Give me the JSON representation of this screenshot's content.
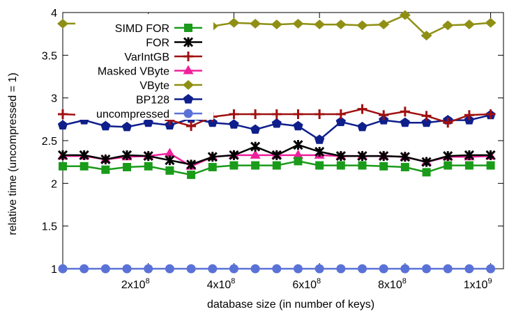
{
  "chart_data": {
    "type": "line",
    "xlabel": "database size (in number of keys)",
    "ylabel": "relative time (uncompressed = 1)",
    "xlim": [
      0,
      1030000000
    ],
    "ylim": [
      1,
      4
    ],
    "grid": false,
    "legend_position": "top-left",
    "x_ticks": [
      {
        "value": 200000000,
        "mantissa": "2x10",
        "exponent": "8"
      },
      {
        "value": 400000000,
        "mantissa": "4x10",
        "exponent": "8"
      },
      {
        "value": 600000000,
        "mantissa": "6x10",
        "exponent": "8"
      },
      {
        "value": 800000000,
        "mantissa": "8x10",
        "exponent": "8"
      },
      {
        "value": 1000000000,
        "mantissa": "1x10",
        "exponent": "9"
      }
    ],
    "y_ticks": [
      {
        "value": 1,
        "label": "1"
      },
      {
        "value": 1.5,
        "label": "1.5"
      },
      {
        "value": 2,
        "label": "2"
      },
      {
        "value": 2.5,
        "label": "2.5"
      },
      {
        "value": 3,
        "label": "3"
      },
      {
        "value": 3.5,
        "label": "3.5"
      },
      {
        "value": 4,
        "label": "4"
      }
    ],
    "x": [
      0,
      50000000,
      100000000,
      150000000,
      200000000,
      250000000,
      300000000,
      350000000,
      400000000,
      450000000,
      500000000,
      550000000,
      600000000,
      650000000,
      700000000,
      750000000,
      800000000,
      850000000,
      900000000,
      950000000,
      1000000000
    ],
    "series": [
      {
        "name": "SIMD FOR",
        "color": "#1a9b1a",
        "marker": "square",
        "values": [
          2.2,
          2.2,
          2.16,
          2.19,
          2.2,
          2.15,
          2.1,
          2.19,
          2.21,
          2.21,
          2.21,
          2.26,
          2.21,
          2.21,
          2.21,
          2.2,
          2.19,
          2.13,
          2.21,
          2.21,
          2.21
        ]
      },
      {
        "name": "FOR",
        "color": "#000000",
        "marker": "star",
        "values": [
          2.33,
          2.33,
          2.28,
          2.33,
          2.32,
          2.27,
          2.22,
          2.31,
          2.33,
          2.43,
          2.33,
          2.45,
          2.37,
          2.32,
          2.32,
          2.32,
          2.31,
          2.25,
          2.32,
          2.33,
          2.33
        ]
      },
      {
        "name": "VarIntGB",
        "color": "#a01010",
        "marker": "plus",
        "values": [
          2.81,
          2.8,
          2.8,
          2.8,
          2.8,
          2.74,
          2.67,
          2.78,
          2.81,
          2.81,
          2.81,
          2.81,
          2.81,
          2.81,
          2.87,
          2.8,
          2.84,
          2.79,
          2.71,
          2.8,
          2.81
        ]
      },
      {
        "name": "Masked VByte",
        "color": "#f0209c",
        "marker": "triangle",
        "values": [
          2.32,
          2.32,
          2.28,
          2.31,
          2.32,
          2.35,
          2.2,
          2.31,
          2.33,
          2.33,
          2.33,
          2.33,
          2.33,
          2.32,
          2.32,
          2.32,
          2.31,
          2.25,
          2.31,
          2.31,
          2.32
        ]
      },
      {
        "name": "VByte",
        "color": "#8f8f14",
        "marker": "diamond",
        "values": [
          3.87,
          3.87,
          3.86,
          3.87,
          3.87,
          3.83,
          3.75,
          3.84,
          3.88,
          3.87,
          3.86,
          3.87,
          3.86,
          3.86,
          3.85,
          3.86,
          3.97,
          3.73,
          3.85,
          3.86,
          3.88
        ]
      },
      {
        "name": "BP128",
        "color": "#0e1f8c",
        "marker": "pentagon",
        "values": [
          2.68,
          2.74,
          2.67,
          2.66,
          2.71,
          2.68,
          2.76,
          2.71,
          2.69,
          2.63,
          2.7,
          2.67,
          2.51,
          2.72,
          2.66,
          2.74,
          2.71,
          2.71,
          2.74,
          2.74,
          2.8
        ]
      },
      {
        "name": "uncompressed",
        "color": "#5a72d8",
        "marker": "circle",
        "values": [
          1,
          1,
          1,
          1,
          1,
          1,
          1,
          1,
          1,
          1,
          1,
          1,
          1,
          1,
          1,
          1,
          1,
          1,
          1,
          1,
          1
        ]
      }
    ]
  }
}
